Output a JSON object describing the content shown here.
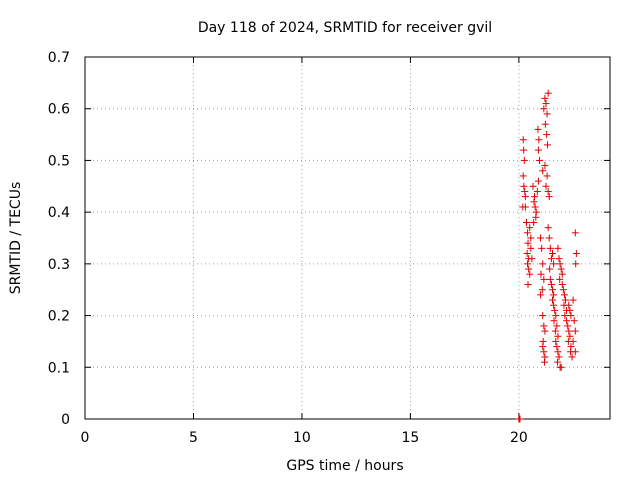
{
  "chart_data": {
    "type": "scatter",
    "title": "Day 118 of 2024, SRMTID for receiver gvil",
    "xlabel": "GPS time / hours",
    "ylabel": "SRMTID / TECUs",
    "xlim": [
      0,
      24.2
    ],
    "ylim": [
      0,
      0.7
    ],
    "x_ticks": [
      0,
      5,
      10,
      15,
      20
    ],
    "x_tick_labels": [
      "0",
      "5",
      "10",
      "15",
      "20"
    ],
    "y_ticks": [
      0,
      0.1,
      0.2,
      0.3,
      0.4,
      0.5,
      0.6,
      0.7
    ],
    "y_tick_labels": [
      "0",
      "0.1",
      "0.2",
      "0.3",
      "0.4",
      "0.5",
      "0.6",
      "0.7"
    ],
    "grid": true,
    "marker": "+",
    "color": "#e00000",
    "series": [
      {
        "name": "SRMTID",
        "points": [
          [
            20.0,
            0.0
          ],
          [
            20.03,
            0.0
          ],
          [
            20.05,
            0.0
          ],
          [
            20.2,
            0.54
          ],
          [
            20.22,
            0.52
          ],
          [
            20.25,
            0.5
          ],
          [
            20.2,
            0.47
          ],
          [
            20.23,
            0.45
          ],
          [
            20.27,
            0.44
          ],
          [
            20.3,
            0.43
          ],
          [
            20.18,
            0.41
          ],
          [
            20.3,
            0.41
          ],
          [
            20.35,
            0.38
          ],
          [
            20.4,
            0.36
          ],
          [
            20.42,
            0.34
          ],
          [
            20.38,
            0.32
          ],
          [
            20.45,
            0.31
          ],
          [
            20.4,
            0.3
          ],
          [
            20.45,
            0.29
          ],
          [
            20.5,
            0.28
          ],
          [
            20.42,
            0.26
          ],
          [
            20.55,
            0.35
          ],
          [
            20.55,
            0.33
          ],
          [
            20.6,
            0.31
          ],
          [
            20.5,
            0.37
          ],
          [
            20.7,
            0.42
          ],
          [
            20.75,
            0.41
          ],
          [
            20.8,
            0.4
          ],
          [
            20.72,
            0.43
          ],
          [
            20.65,
            0.45
          ],
          [
            20.85,
            0.44
          ],
          [
            20.9,
            0.46
          ],
          [
            20.78,
            0.39
          ],
          [
            20.68,
            0.38
          ],
          [
            20.9,
            0.52
          ],
          [
            20.92,
            0.54
          ],
          [
            20.95,
            0.5
          ],
          [
            20.88,
            0.56
          ],
          [
            21.0,
            0.35
          ],
          [
            21.05,
            0.33
          ],
          [
            21.1,
            0.3
          ],
          [
            21.02,
            0.28
          ],
          [
            21.08,
            0.25
          ],
          [
            21.15,
            0.27
          ],
          [
            21.0,
            0.24
          ],
          [
            21.1,
            0.2
          ],
          [
            21.15,
            0.18
          ],
          [
            21.2,
            0.17
          ],
          [
            21.12,
            0.15
          ],
          [
            21.1,
            0.14
          ],
          [
            21.15,
            0.13
          ],
          [
            21.2,
            0.12
          ],
          [
            21.18,
            0.11
          ],
          [
            21.15,
            0.6
          ],
          [
            21.2,
            0.62
          ],
          [
            21.25,
            0.61
          ],
          [
            21.3,
            0.59
          ],
          [
            21.22,
            0.57
          ],
          [
            21.35,
            0.63
          ],
          [
            21.28,
            0.55
          ],
          [
            21.32,
            0.53
          ],
          [
            21.1,
            0.48
          ],
          [
            21.2,
            0.49
          ],
          [
            21.3,
            0.47
          ],
          [
            21.25,
            0.45
          ],
          [
            21.35,
            0.44
          ],
          [
            21.4,
            0.43
          ],
          [
            21.35,
            0.37
          ],
          [
            21.4,
            0.35
          ],
          [
            21.45,
            0.33
          ],
          [
            21.5,
            0.31
          ],
          [
            21.42,
            0.29
          ],
          [
            21.55,
            0.32
          ],
          [
            21.6,
            0.3
          ],
          [
            21.45,
            0.27
          ],
          [
            21.5,
            0.26
          ],
          [
            21.55,
            0.25
          ],
          [
            21.6,
            0.24
          ],
          [
            21.55,
            0.23
          ],
          [
            21.6,
            0.22
          ],
          [
            21.65,
            0.21
          ],
          [
            21.7,
            0.2
          ],
          [
            21.62,
            0.19
          ],
          [
            21.75,
            0.18
          ],
          [
            21.68,
            0.17
          ],
          [
            21.8,
            0.16
          ],
          [
            21.7,
            0.15
          ],
          [
            21.75,
            0.14
          ],
          [
            21.8,
            0.13
          ],
          [
            21.85,
            0.12
          ],
          [
            21.78,
            0.11
          ],
          [
            21.9,
            0.1
          ],
          [
            21.95,
            0.1
          ],
          [
            21.8,
            0.33
          ],
          [
            21.85,
            0.31
          ],
          [
            21.9,
            0.3
          ],
          [
            21.95,
            0.29
          ],
          [
            22.0,
            0.28
          ],
          [
            21.88,
            0.27
          ],
          [
            22.0,
            0.26
          ],
          [
            22.05,
            0.25
          ],
          [
            22.1,
            0.24
          ],
          [
            22.15,
            0.23
          ],
          [
            22.08,
            0.22
          ],
          [
            22.2,
            0.21
          ],
          [
            22.12,
            0.2
          ],
          [
            22.2,
            0.19
          ],
          [
            22.25,
            0.18
          ],
          [
            22.3,
            0.17
          ],
          [
            22.35,
            0.16
          ],
          [
            22.28,
            0.15
          ],
          [
            22.4,
            0.14
          ],
          [
            22.38,
            0.13
          ],
          [
            22.45,
            0.12
          ],
          [
            22.3,
            0.22
          ],
          [
            22.35,
            0.21
          ],
          [
            22.4,
            0.2
          ],
          [
            22.5,
            0.23
          ],
          [
            22.55,
            0.19
          ],
          [
            22.6,
            0.17
          ],
          [
            22.5,
            0.15
          ],
          [
            22.6,
            0.13
          ],
          [
            22.6,
            0.36
          ],
          [
            22.65,
            0.32
          ],
          [
            22.62,
            0.3
          ]
        ]
      }
    ]
  }
}
